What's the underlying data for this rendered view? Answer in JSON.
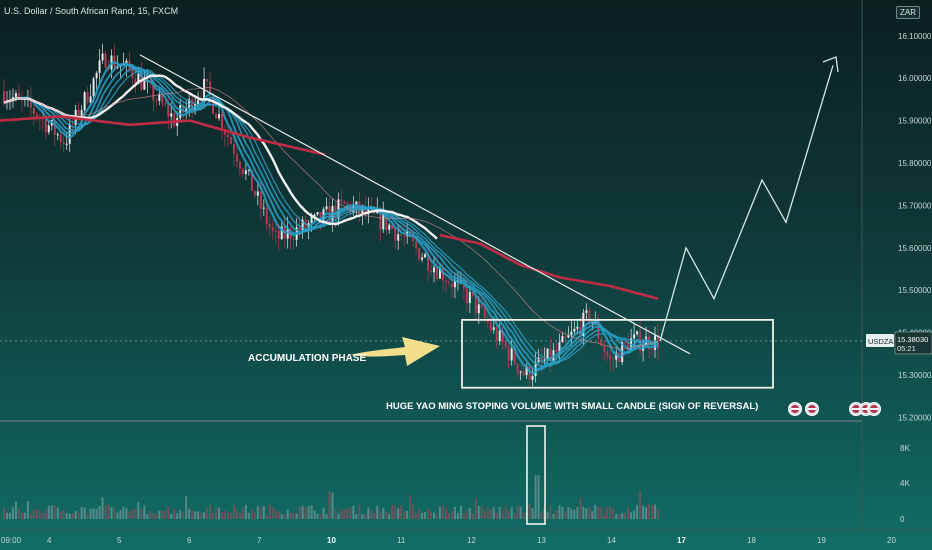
{
  "header": {
    "title": "U.S. Dollar / South African Rand, 15, FXCM",
    "currency": "ZAR"
  },
  "price_scale": {
    "ticks": [
      "16.10000",
      "16.00000",
      "15.90000",
      "15.80000",
      "15.70000",
      "15.60000",
      "15.50000",
      "15.40000",
      "15.30000",
      "15.20000"
    ],
    "symbol_tag": "USDZAR",
    "last_price": "15.38030",
    "countdown": "05:21"
  },
  "volume_scale": {
    "ticks": [
      "8K",
      "4K",
      "0"
    ]
  },
  "time_axis": {
    "ticks": [
      "09:00",
      "4",
      "5",
      "6",
      "7",
      "10",
      "11",
      "12",
      "13",
      "14",
      "17",
      "18",
      "19",
      "20"
    ]
  },
  "annotations": {
    "accumulation": "ACCUMULATION PHASE",
    "reversal": "HUGE YAO MING STOPING VOLUME WITH SMALL CANDLE (SIGN OF REVERSAL)"
  },
  "colors": {
    "up_candle": "#e7e7ea",
    "down_candle": "#b23a52",
    "ribbon": "#2aa0c8",
    "slow_ma": "#c22b45",
    "trendline": "#e8e8e8",
    "projection": "#cfe8e6",
    "arrow": "#f3de8c"
  },
  "chart_data": {
    "type": "candlestick",
    "title": "U.S. Dollar / South African Rand, 15, FXCM",
    "y_range": [
      15.2,
      16.1
    ],
    "x_days": [
      "4",
      "5",
      "6",
      "7",
      "10",
      "11",
      "12",
      "13",
      "14",
      "17",
      "18",
      "19",
      "20"
    ],
    "price_path": [
      [
        "4",
        15.92
      ],
      [
        "4",
        15.85
      ],
      [
        "5",
        16.05
      ],
      [
        "5",
        16.01
      ],
      [
        "6",
        15.9
      ],
      [
        "6",
        15.98
      ],
      [
        "7",
        15.78
      ],
      [
        "7",
        15.62
      ],
      [
        "10",
        15.66
      ],
      [
        "10",
        15.7
      ],
      [
        "11",
        15.66
      ],
      [
        "11",
        15.6
      ],
      [
        "12",
        15.48
      ],
      [
        "13",
        15.3
      ],
      [
        "13",
        15.35
      ],
      [
        "14",
        15.44
      ],
      [
        "14",
        15.33
      ],
      [
        "14",
        15.38
      ]
    ],
    "projection_path": [
      [
        "14",
        15.38
      ],
      [
        "17",
        15.6
      ],
      [
        "17",
        15.48
      ],
      [
        "18",
        15.76
      ],
      [
        "18",
        15.66
      ],
      [
        "20",
        16.03
      ]
    ],
    "accumulation_zone": {
      "from": "13",
      "to": "17",
      "low": 15.27,
      "high": 15.43
    },
    "volume_ticks": [
      "8K",
      "4K",
      "0"
    ],
    "last_price": 15.3803
  }
}
